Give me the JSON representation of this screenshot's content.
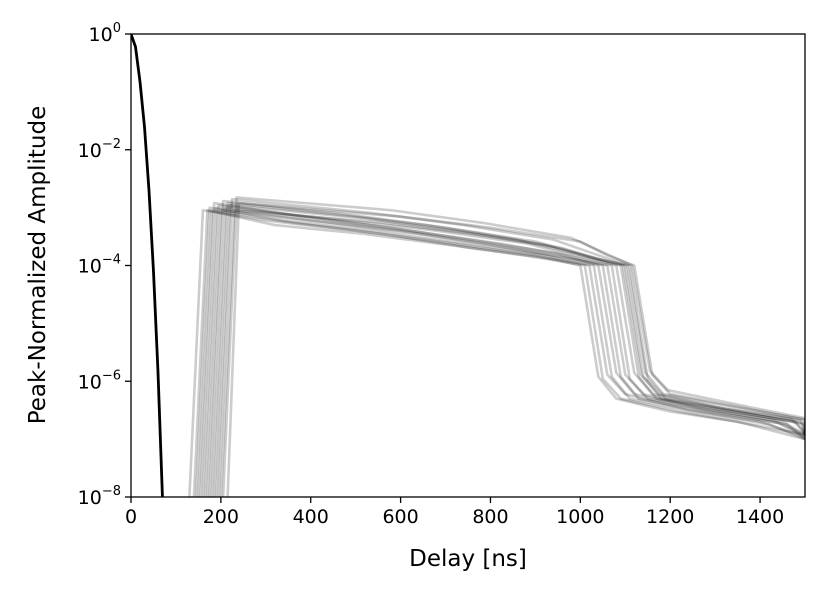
{
  "chart_data": {
    "type": "line",
    "title": "",
    "xlabel": "Delay [ns]",
    "ylabel": "Peak-Normalized Amplitude",
    "xlim": [
      0,
      1500
    ],
    "ylim": [
      1e-08,
      1
    ],
    "yscale": "log",
    "grid": false,
    "legend": "none",
    "x_ticks": [
      {
        "value": 0,
        "label": "0"
      },
      {
        "value": 200,
        "label": "200"
      },
      {
        "value": 400,
        "label": "400"
      },
      {
        "value": 600,
        "label": "600"
      },
      {
        "value": 800,
        "label": "800"
      },
      {
        "value": 1000,
        "label": "1000"
      },
      {
        "value": 1200,
        "label": "1200"
      },
      {
        "value": 1400,
        "label": "1400"
      }
    ],
    "y_ticks": [
      {
        "value": 1,
        "base": "10",
        "exp": "0"
      },
      {
        "value": 0.01,
        "base": "10",
        "exp": "−2"
      },
      {
        "value": 0.0001,
        "base": "10",
        "exp": "−4"
      },
      {
        "value": 1e-06,
        "base": "10",
        "exp": "−6"
      },
      {
        "value": 1e-08,
        "base": "10",
        "exp": "−8"
      }
    ],
    "series_color": "#000000",
    "series_opacity": 0.2,
    "main_series": {
      "color": "#000000",
      "x": [
        0,
        10,
        20,
        30,
        40,
        50,
        60,
        70
      ],
      "y": [
        1.0,
        0.6,
        0.15,
        0.025,
        0.002,
        8e-05,
        1.5e-06,
        1e-08
      ]
    },
    "series": [
      {
        "x": [
          130,
          160,
          300,
          500,
          700,
          900,
          1000,
          1040,
          1080,
          1200,
          1350,
          1500
        ],
        "y": [
          1e-08,
          0.0009,
          0.0006,
          0.0004,
          0.00025,
          0.00015,
          0.0001,
          1.2e-06,
          5e-07,
          3e-07,
          2e-07,
          1e-07
        ]
      },
      {
        "x": [
          140,
          170,
          320,
          520,
          720,
          900,
          1010,
          1050,
          1090,
          1220,
          1380,
          1500
        ],
        "y": [
          1e-08,
          0.0009,
          0.0005,
          0.00035,
          0.00022,
          0.00014,
          0.0001,
          1.1e-06,
          5e-07,
          3e-07,
          1.8e-07,
          1.2e-07
        ]
      },
      {
        "x": [
          145,
          175,
          340,
          540,
          740,
          920,
          1020,
          1060,
          1100,
          1240,
          1400,
          1500
        ],
        "y": [
          1e-08,
          0.001,
          0.0006,
          0.0004,
          0.00024,
          0.00015,
          0.0001,
          1.3e-06,
          6e-07,
          3.2e-07,
          2e-07,
          1.1e-07
        ]
      },
      {
        "x": [
          150,
          180,
          360,
          560,
          760,
          940,
          1030,
          1070,
          1110,
          1250,
          1420,
          1500
        ],
        "y": [
          1e-08,
          0.0009,
          0.00055,
          0.00035,
          0.0002,
          0.00013,
          0.0001,
          1.2e-06,
          5e-07,
          3e-07,
          1.8e-07,
          1e-07
        ]
      },
      {
        "x": [
          155,
          185,
          380,
          580,
          780,
          950,
          1040,
          1080,
          1120,
          1260,
          1430,
          1500
        ],
        "y": [
          1e-08,
          0.0012,
          0.0007,
          0.00045,
          0.00026,
          0.00016,
          0.0001,
          1.4e-06,
          6e-07,
          3.5e-07,
          2.1e-07,
          1.2e-07
        ]
      },
      {
        "x": [
          160,
          190,
          400,
          600,
          800,
          960,
          1050,
          1090,
          1130,
          1270,
          1440,
          1500
        ],
        "y": [
          1e-08,
          0.001,
          0.0006,
          0.0004,
          0.00023,
          0.00014,
          0.0001,
          1.2e-06,
          5e-07,
          3.1e-07,
          1.9e-07,
          1.1e-07
        ]
      },
      {
        "x": [
          165,
          195,
          420,
          620,
          820,
          970,
          1060,
          1100,
          1140,
          1280,
          1450,
          1500
        ],
        "y": [
          1e-08,
          0.0011,
          0.00065,
          0.0004,
          0.00024,
          0.00015,
          0.0001,
          1.3e-06,
          6e-07,
          3.3e-07,
          2e-07,
          1.2e-07
        ]
      },
      {
        "x": [
          170,
          200,
          440,
          640,
          840,
          980,
          1070,
          1110,
          1150,
          1290,
          1460,
          1500
        ],
        "y": [
          1e-08,
          0.0009,
          0.00055,
          0.00035,
          0.0002,
          0.00013,
          0.0001,
          1.1e-06,
          5e-07,
          3e-07,
          1.8e-07,
          1e-07
        ]
      },
      {
        "x": [
          175,
          205,
          460,
          660,
          860,
          990,
          1080,
          1120,
          1160,
          1300,
          1470,
          1500
        ],
        "y": [
          1e-08,
          0.0013,
          0.0008,
          0.0005,
          0.00028,
          0.00016,
          0.0001,
          1.4e-06,
          6e-07,
          3.6e-07,
          2.2e-07,
          1.3e-07
        ]
      },
      {
        "x": [
          180,
          210,
          480,
          680,
          880,
          1000,
          1090,
          1130,
          1170,
          1310,
          1480,
          1500
        ],
        "y": [
          1e-08,
          0.001,
          0.0006,
          0.0004,
          0.00024,
          0.00014,
          0.0001,
          1.2e-06,
          5e-07,
          3.2e-07,
          2e-07,
          1.2e-07
        ]
      },
      {
        "x": [
          185,
          215,
          500,
          700,
          900,
          1010,
          1095,
          1135,
          1175,
          1320,
          1490,
          1500
        ],
        "y": [
          1e-08,
          0.0012,
          0.0007,
          0.00045,
          0.00026,
          0.00015,
          0.0001,
          1.3e-06,
          6e-07,
          3.4e-07,
          2.1e-07,
          1.2e-07
        ]
      },
      {
        "x": [
          190,
          220,
          520,
          720,
          920,
          1020,
          1100,
          1140,
          1180,
          1330,
          1495,
          1500
        ],
        "y": [
          1e-08,
          0.0011,
          0.00065,
          0.0004,
          0.00023,
          0.00014,
          0.0001,
          1.2e-06,
          5e-07,
          3.1e-07,
          1.9e-07,
          1.1e-07
        ]
      },
      {
        "x": [
          195,
          225,
          540,
          740,
          940,
          1030,
          1105,
          1145,
          1185,
          1340,
          1500,
          1500
        ],
        "y": [
          1e-08,
          0.0014,
          0.0008,
          0.0005,
          0.00028,
          0.00016,
          0.0001,
          1.4e-06,
          6e-07,
          3.6e-07,
          2.2e-07,
          1.3e-07
        ]
      },
      {
        "x": [
          200,
          230,
          560,
          760,
          960,
          1040,
          1110,
          1150,
          1190,
          1350,
          1500,
          1500
        ],
        "y": [
          1e-08,
          0.0009,
          0.00055,
          0.00035,
          0.0002,
          0.00013,
          0.0001,
          1.1e-06,
          5e-07,
          3e-07,
          1.8e-07,
          1e-07
        ]
      },
      {
        "x": [
          205,
          235,
          580,
          780,
          980,
          1050,
          1115,
          1155,
          1195,
          1360,
          1500,
          1500
        ],
        "y": [
          1e-08,
          0.0015,
          0.0009,
          0.00055,
          0.0003,
          0.00017,
          0.0001,
          1.5e-06,
          7e-07,
          3.8e-07,
          2.3e-07,
          1.4e-07
        ]
      },
      {
        "x": [
          215,
          240,
          600,
          800,
          1000,
          1060,
          1120,
          1160,
          1200,
          1370,
          1500,
          1500
        ],
        "y": [
          1e-08,
          0.0012,
          0.0007,
          0.00045,
          0.00026,
          0.00015,
          0.0001,
          1.3e-06,
          6e-07,
          3.4e-07,
          2.1e-07,
          1.2e-07
        ]
      }
    ]
  }
}
